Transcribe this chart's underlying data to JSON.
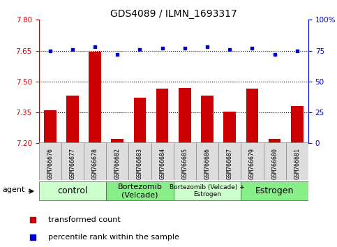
{
  "title": "GDS4089 / ILMN_1693317",
  "samples": [
    "GSM766676",
    "GSM766677",
    "GSM766678",
    "GSM766682",
    "GSM766683",
    "GSM766684",
    "GSM766685",
    "GSM766686",
    "GSM766687",
    "GSM766679",
    "GSM766680",
    "GSM766681"
  ],
  "bar_values": [
    7.36,
    7.43,
    7.645,
    7.22,
    7.42,
    7.465,
    7.47,
    7.43,
    7.355,
    7.465,
    7.22,
    7.38
  ],
  "dot_values": [
    75,
    76,
    78,
    72,
    76,
    77,
    77,
    78,
    76,
    77,
    72,
    75
  ],
  "bar_color": "#cc0000",
  "dot_color": "#0000cc",
  "ylim_left": [
    7.2,
    7.8
  ],
  "ylim_right": [
    0,
    100
  ],
  "yticks_left": [
    7.2,
    7.35,
    7.5,
    7.65,
    7.8
  ],
  "yticks_right": [
    0,
    25,
    50,
    75,
    100
  ],
  "hlines": [
    7.35,
    7.5,
    7.65
  ],
  "groups": [
    {
      "label": "control",
      "start": 0,
      "end": 3,
      "color": "#ccffcc",
      "fontsize": 9
    },
    {
      "label": "Bortezomib\n(Velcade)",
      "start": 3,
      "end": 6,
      "color": "#88ee88",
      "fontsize": 8
    },
    {
      "label": "Bortezomib (Velcade) +\nEstrogen",
      "start": 6,
      "end": 9,
      "color": "#ccffcc",
      "fontsize": 6.5
    },
    {
      "label": "Estrogen",
      "start": 9,
      "end": 12,
      "color": "#88ee88",
      "fontsize": 9
    }
  ],
  "agent_label": "agent",
  "legend_bar_label": "transformed count",
  "legend_dot_label": "percentile rank within the sample",
  "base_value": 7.2,
  "left_axis_color": "#cc0000",
  "right_axis_color": "#0000cc",
  "label_bg_color": "#dddddd"
}
